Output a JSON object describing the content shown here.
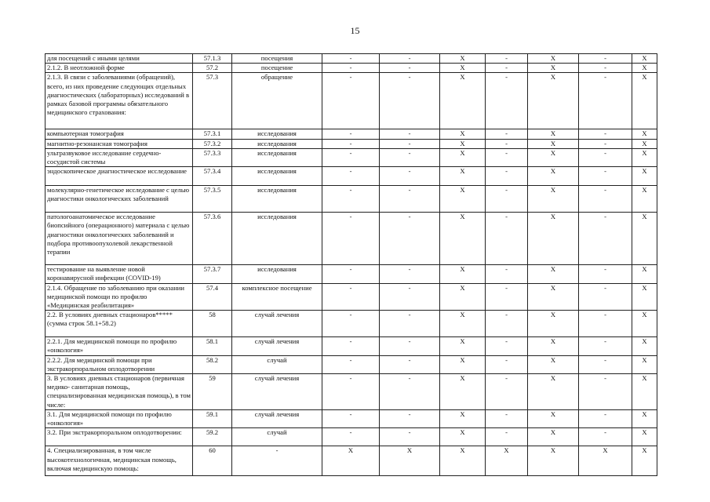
{
  "page_number": "15",
  "rows": [
    {
      "name": "для посещений с иными целями",
      "code": "57.1.3",
      "unit": "посещения",
      "v": [
        "-",
        "-",
        "X",
        "-",
        "X",
        "-",
        "X"
      ]
    },
    {
      "name": "2.1.2. В неотложной форме",
      "code": "57.2",
      "unit": "посещение",
      "v": [
        "-",
        "-",
        "X",
        "-",
        "X",
        "-",
        "X"
      ]
    },
    {
      "name": "2.1.3. В связи с заболеваниями (обращений), всего, из них проведение следующих отдельных диагностических (лабораторных) исследований в рамках базовой программы обязательного медицинского страхования:",
      "code": "57.3",
      "unit": "обращение",
      "v": [
        "-",
        "-",
        "X",
        "-",
        "X",
        "-",
        "X"
      ]
    },
    {
      "name": "компьютерная томография",
      "code": "57.3.1",
      "unit": "исследования",
      "v": [
        "-",
        "-",
        "X",
        "-",
        "X",
        "-",
        "X"
      ]
    },
    {
      "name": "магнитно-резонансная томография",
      "code": "57.3.2",
      "unit": "исследования",
      "v": [
        "-",
        "-",
        "X",
        "-",
        "X",
        "-",
        "X"
      ]
    },
    {
      "name": "ультразвуковое исследование сердечно-сосудистой системы",
      "code": "57.3.3",
      "unit": "исследования",
      "v": [
        "-",
        "-",
        "X",
        "-",
        "X",
        "-",
        "X"
      ]
    },
    {
      "name": "эндоскопическое диагностическое исследование",
      "code": "57.3.4",
      "unit": "исследования",
      "v": [
        "-",
        "-",
        "X",
        "-",
        "X",
        "-",
        "X"
      ]
    },
    {
      "name": "молекулярно-генетическое исследование с целью диагностики онкологических заболеваний",
      "code": "57.3.5",
      "unit": "исследования",
      "v": [
        "-",
        "-",
        "X",
        "-",
        "X",
        "-",
        "X"
      ]
    },
    {
      "name": "патологоанатомическое исследование биопсийного (операционного) материала с целью диагностики онкологических заболеваний и подбора противоопухолевой лекарственной терапии",
      "code": "57.3.6",
      "unit": "исследования",
      "v": [
        "-",
        "-",
        "X",
        "-",
        "X",
        "-",
        "X"
      ]
    },
    {
      "name": "тестирование на выявление новой коронавирусной инфекции (COVID-19)",
      "code": "57.3.7",
      "unit": "исследования",
      "v": [
        "-",
        "-",
        "X",
        "-",
        "X",
        "-",
        "X"
      ]
    },
    {
      "name": "2.1.4. Обращение по заболеванию при оказании медицинской помощи по профилю «Медицинская реабилитация»",
      "code": "57.4",
      "unit": "комплексное посещение",
      "v": [
        "-",
        "-",
        "X",
        "-",
        "X",
        "-",
        "X"
      ]
    },
    {
      "name": "2.2. В условиях дневных стационаров***** (сумма строк 58.1+58.2)",
      "code": "58",
      "unit": "случай лечения",
      "v": [
        "-",
        "-",
        "X",
        "-",
        "X",
        "-",
        "X"
      ]
    },
    {
      "name": "2.2.1. Для медицинской помощи по профилю «онкология»",
      "code": "58.1",
      "unit": "случай лечения",
      "v": [
        "-",
        "-",
        "X",
        "-",
        "X",
        "-",
        "X"
      ]
    },
    {
      "name": "2.2.2. Для медицинской помощи при экстракорпоральном оплодотворении",
      "code": "58.2",
      "unit": "случай",
      "v": [
        "-",
        "-",
        "X",
        "-",
        "X",
        "-",
        "X"
      ]
    },
    {
      "name": "3. В условиях дневных стационаров (первичная медико- санитарная помощь, специализированная медицинская помощь), в том числе:",
      "code": "59",
      "unit": "случай лечения",
      "v": [
        "-",
        "-",
        "X",
        "-",
        "X",
        "-",
        "X"
      ]
    },
    {
      "name": "3.1. Для медицинской помощи по профилю «онкология»",
      "code": "59.1",
      "unit": "случай лечения",
      "v": [
        "-",
        "-",
        "X",
        "-",
        "X",
        "-",
        "X"
      ]
    },
    {
      "name": "3.2. При экстракорпоральном оплодотворении:",
      "code": "59.2",
      "unit": "случай",
      "v": [
        "-",
        "-",
        "X",
        "-",
        "X",
        "-",
        "X"
      ]
    },
    {
      "name": "4. Специализированная, в том числе высокотехнологичная, медицинская помощь, включая медицинскую помощь:",
      "code": "60",
      "unit": "-",
      "v": [
        "X",
        "X",
        "X",
        "X",
        "X",
        "X",
        "X"
      ]
    }
  ]
}
